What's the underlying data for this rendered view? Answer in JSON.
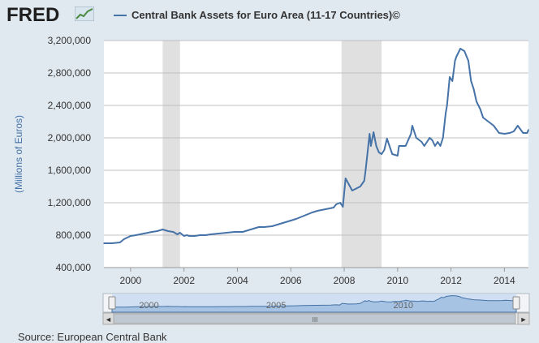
{
  "header": {
    "logo_text": "FRED",
    "logo_icon": "chart-line-icon"
  },
  "colors": {
    "series": "#4572a7",
    "background": "#e1e9f0",
    "plot_background": "#ffffff",
    "recession": "#e0e0e0",
    "navigator_fill": "#a6c3e3",
    "navigator_band": "#c7dbf0"
  },
  "chart_data": {
    "type": "line",
    "title": "",
    "xlabel": "",
    "ylabel": "(Millions of Euros)",
    "ylim": [
      400000,
      3200000
    ],
    "xlim": [
      1999.0,
      2014.9
    ],
    "x_ticks": [
      {
        "value": 2000,
        "label": "2000"
      },
      {
        "value": 2002,
        "label": "2002"
      },
      {
        "value": 2004,
        "label": "2004"
      },
      {
        "value": 2006,
        "label": "2006"
      },
      {
        "value": 2008,
        "label": "2008"
      },
      {
        "value": 2010,
        "label": "2010"
      },
      {
        "value": 2012,
        "label": "2012"
      },
      {
        "value": 2014,
        "label": "2014"
      }
    ],
    "y_ticks": [
      {
        "value": 400000,
        "label": "400,000"
      },
      {
        "value": 800000,
        "label": "800,000"
      },
      {
        "value": 1200000,
        "label": "1,200,000"
      },
      {
        "value": 1600000,
        "label": "1,600,000"
      },
      {
        "value": 2000000,
        "label": "2,000,000"
      },
      {
        "value": 2400000,
        "label": "2,400,000"
      },
      {
        "value": 2800000,
        "label": "2,800,000"
      },
      {
        "value": 3200000,
        "label": "3,200,000"
      }
    ],
    "grid": true,
    "legend_position": "top",
    "recessions": [
      [
        2001.2,
        2001.85
      ],
      [
        2007.9,
        2009.4
      ]
    ],
    "series": [
      {
        "name": "Central Bank Assets for Euro Area (11-17 Countries)©",
        "x": [
          1999.0,
          1999.3,
          1999.6,
          1999.75,
          2000.0,
          2000.2,
          2000.35,
          2000.5,
          2000.65,
          2000.8,
          2001.0,
          2001.2,
          2001.4,
          2001.6,
          2001.75,
          2001.85,
          2002.0,
          2002.1,
          2002.2,
          2002.4,
          2002.6,
          2002.8,
          2003.0,
          2003.3,
          2003.6,
          2003.9,
          2004.2,
          2004.5,
          2004.8,
          2005.0,
          2005.3,
          2005.6,
          2005.9,
          2006.2,
          2006.5,
          2006.8,
          2007.0,
          2007.3,
          2007.6,
          2007.7,
          2007.85,
          2007.95,
          2008.05,
          2008.3,
          2008.6,
          2008.75,
          2008.8,
          2008.95,
          2009.0,
          2009.1,
          2009.2,
          2009.3,
          2009.4,
          2009.5,
          2009.6,
          2009.8,
          2010.0,
          2010.05,
          2010.3,
          2010.5,
          2010.55,
          2010.7,
          2010.9,
          2011.0,
          2011.2,
          2011.3,
          2011.4,
          2011.5,
          2011.6,
          2011.7,
          2011.8,
          2011.85,
          2011.95,
          2012.05,
          2012.15,
          2012.2,
          2012.35,
          2012.5,
          2012.65,
          2012.75,
          2012.85,
          2012.95,
          2013.1,
          2013.2,
          2013.4,
          2013.6,
          2013.8,
          2014.0,
          2014.2,
          2014.35,
          2014.5,
          2014.7,
          2014.85,
          2014.9
        ],
        "values": [
          700000,
          700000,
          710000,
          750000,
          790000,
          800000,
          810000,
          820000,
          830000,
          840000,
          850000,
          870000,
          850000,
          840000,
          810000,
          830000,
          790000,
          800000,
          790000,
          790000,
          800000,
          800000,
          810000,
          820000,
          830000,
          840000,
          840000,
          870000,
          900000,
          900000,
          910000,
          940000,
          970000,
          1000000,
          1040000,
          1080000,
          1100000,
          1120000,
          1140000,
          1180000,
          1200000,
          1150000,
          1500000,
          1350000,
          1400000,
          1470000,
          1600000,
          2050000,
          1900000,
          2070000,
          1900000,
          1820000,
          1800000,
          1850000,
          1990000,
          1800000,
          1780000,
          1900000,
          1900000,
          2050000,
          2150000,
          2000000,
          1950000,
          1900000,
          2000000,
          1970000,
          1900000,
          1950000,
          1900000,
          2000000,
          2300000,
          2400000,
          2750000,
          2700000,
          2950000,
          3000000,
          3100000,
          3070000,
          2950000,
          2700000,
          2600000,
          2450000,
          2350000,
          2250000,
          2200000,
          2150000,
          2060000,
          2050000,
          2060000,
          2080000,
          2150000,
          2060000,
          2060000,
          2100000
        ]
      }
    ],
    "navigator": {
      "x_labels": [
        {
          "value": 2000,
          "label": "2000"
        },
        {
          "value": 2005,
          "label": "2005"
        },
        {
          "value": 2010,
          "label": "2010"
        }
      ]
    }
  },
  "footer": {
    "source": "Source: European Central Bank"
  },
  "navigator_controls": {
    "left_arrow": "◄",
    "right_arrow": "►",
    "scroll_grip": "III"
  }
}
